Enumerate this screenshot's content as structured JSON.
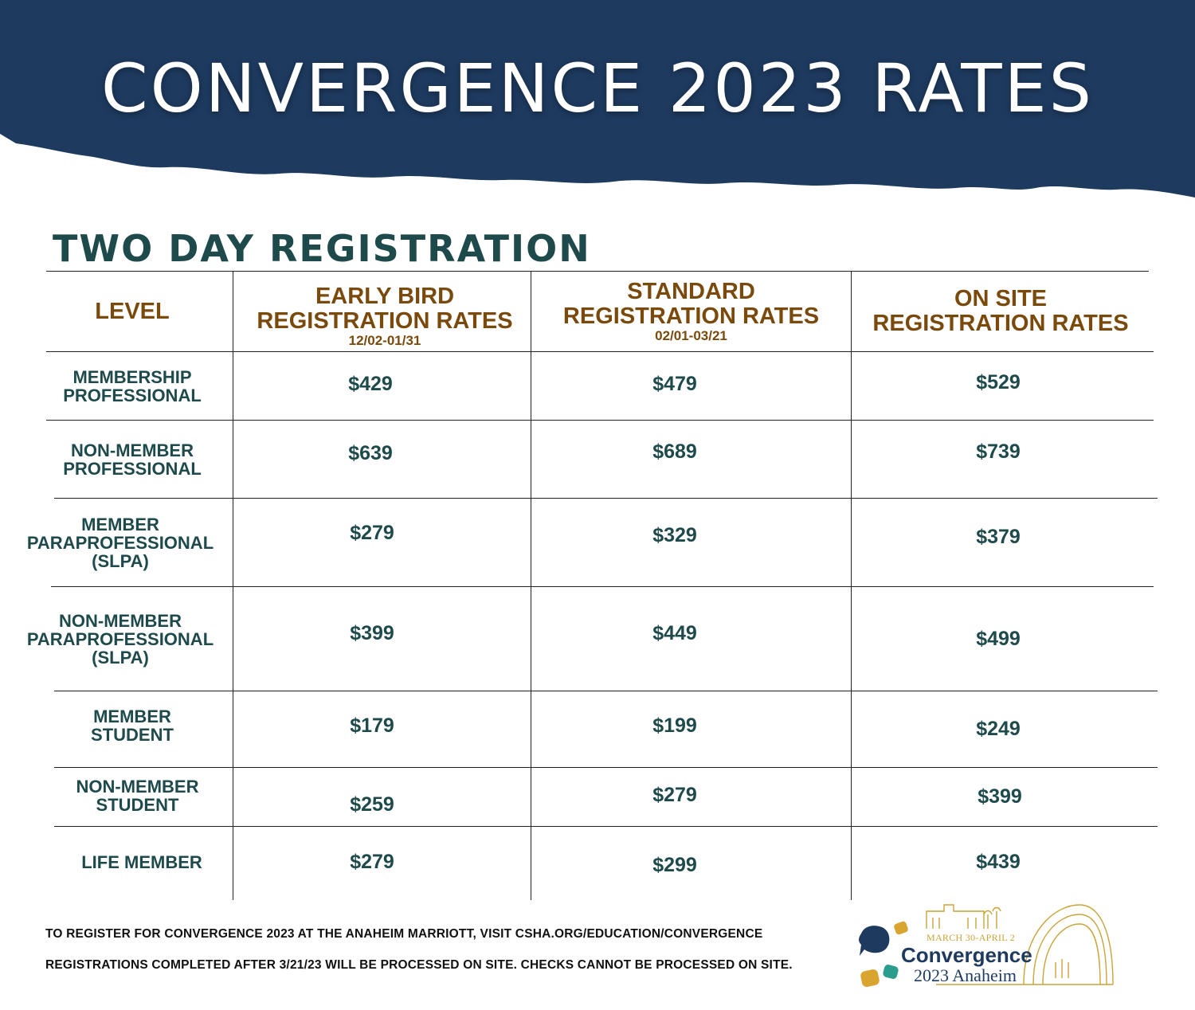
{
  "header": {
    "title": "CONVERGENCE 2023 RATES"
  },
  "section_title": "TWO DAY REGISTRATION",
  "table": {
    "columns": [
      {
        "label": "LEVEL",
        "dates": ""
      },
      {
        "label": "EARLY BIRD REGISTRATION RATES",
        "dates": "12/02-01/31"
      },
      {
        "label": "STANDARD REGISTRATION RATES",
        "dates": "02/01-03/21"
      },
      {
        "label": "ON SITE REGISTRATION RATES",
        "dates": ""
      }
    ],
    "rows": [
      {
        "level": "MEMBERSHIP PROFESSIONAL",
        "early_bird": "$429",
        "standard": "$479",
        "on_site": "$529"
      },
      {
        "level": "NON-MEMBER PROFESSIONAL",
        "early_bird": "$639",
        "standard": "$689",
        "on_site": "$739"
      },
      {
        "level": "MEMBER PARAPROFESSIONAL (SLPA)",
        "early_bird": "$279",
        "standard": "$329",
        "on_site": "$379"
      },
      {
        "level": "NON-MEMBER PARAPROFESSIONAL (SLPA)",
        "early_bird": "$399",
        "standard": "$449",
        "on_site": "$499"
      },
      {
        "level": "MEMBER STUDENT",
        "early_bird": "$179",
        "standard": "$199",
        "on_site": "$249"
      },
      {
        "level": "NON-MEMBER STUDENT",
        "early_bird": "$259",
        "standard": "$279",
        "on_site": "$399"
      },
      {
        "level": "LIFE MEMBER",
        "early_bird": "$279",
        "standard": "$299",
        "on_site": "$439"
      }
    ]
  },
  "footer": {
    "line1": "TO REGISTER FOR CONVERGENCE 2023 AT THE ANAHEIM MARRIOTT, VISIT CSHA.ORG/EDUCATION/CONVERGENCE",
    "line2": "REGISTRATIONS COMPLETED AFTER 3/21/23 WILL BE PROCESSED ON SITE.  CHECKS CANNOT BE PROCESSED ON SITE."
  },
  "logo": {
    "dates": "MARCH 30-APRIL 2",
    "name": "Convergence",
    "subtitle": "2023 Anaheim"
  },
  "colors": {
    "banner": "#1e3a5f",
    "header_text": "#7a4a0c",
    "body_text": "#1e4a4c",
    "logo_gold": "#c9a43a",
    "logo_teal": "#2a9d8f"
  }
}
